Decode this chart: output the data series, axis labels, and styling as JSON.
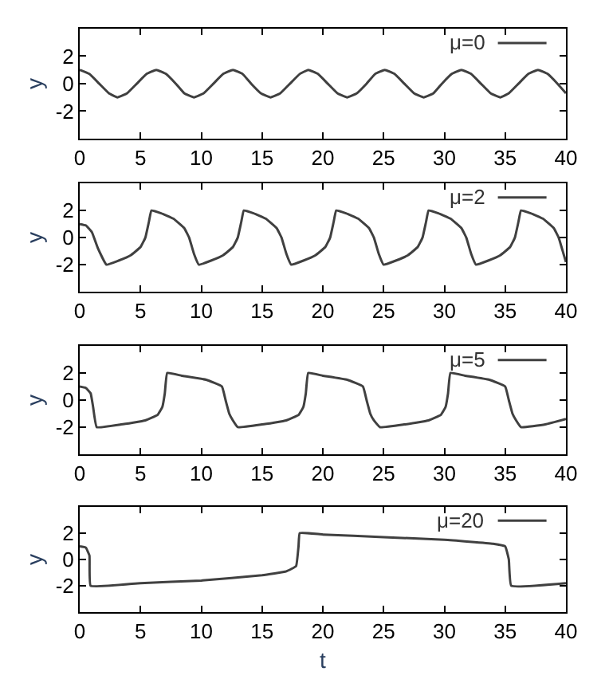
{
  "chart_data": [
    {
      "type": "line",
      "ylabel": "y",
      "xlim": [
        0,
        40
      ],
      "xticks": [
        0,
        5,
        10,
        15,
        20,
        25,
        30,
        35,
        40
      ],
      "ylim": [
        -4,
        4
      ],
      "yticks": [
        -2,
        0,
        2
      ],
      "grid": false,
      "legend": "top right",
      "series": [
        {
          "name": "μ=0",
          "color": "#404040",
          "x": [
            0,
            0.8,
            1.6,
            2.4,
            3.1,
            3.9,
            4.7,
            5.5,
            6.3,
            7.1,
            7.9,
            8.6,
            9.4,
            10.2,
            11.0,
            11.8,
            12.6,
            13.4,
            14.1,
            14.9,
            15.7,
            16.5,
            17.3,
            18.1,
            18.8,
            19.6,
            20.4,
            21.2,
            22.0,
            22.8,
            23.6,
            24.3,
            25.1,
            25.9,
            26.7,
            27.5,
            28.3,
            29.1,
            29.8,
            30.6,
            31.4,
            32.2,
            33.0,
            33.8,
            34.6,
            35.3,
            36.1,
            36.9,
            37.7,
            38.5,
            39.3,
            40.0
          ],
          "values": [
            1,
            0.7,
            0,
            -0.7,
            -1,
            -0.7,
            0,
            0.7,
            1,
            0.7,
            0,
            -0.7,
            -1,
            -0.7,
            0,
            0.7,
            1,
            0.7,
            0,
            -0.7,
            -1,
            -0.7,
            0,
            0.7,
            1,
            0.7,
            0,
            -0.7,
            -1,
            -0.7,
            0,
            0.7,
            1,
            0.7,
            0,
            -0.7,
            -1,
            -0.7,
            0,
            0.7,
            1,
            0.7,
            0,
            -0.7,
            -1,
            -0.7,
            0,
            0.7,
            1,
            0.7,
            0,
            -0.7
          ]
        }
      ]
    },
    {
      "type": "line",
      "ylabel": "y",
      "xlim": [
        0,
        40
      ],
      "xticks": [
        0,
        5,
        10,
        15,
        20,
        25,
        30,
        35,
        40
      ],
      "ylim": [
        -4,
        4
      ],
      "yticks": [
        -2,
        0,
        2
      ],
      "grid": false,
      "legend": "top right",
      "series": [
        {
          "name": "μ=2",
          "color": "#404040",
          "x": [
            0,
            0.5,
            1,
            1.5,
            2.2,
            3.2,
            4.2,
            5.0,
            5.4,
            5.7,
            5.9,
            6.7,
            7.7,
            8.6,
            9.0,
            9.4,
            9.8,
            10.8,
            11.8,
            12.6,
            13.0,
            13.3,
            13.5,
            14.3,
            15.3,
            16.2,
            16.6,
            17.0,
            17.4,
            18.4,
            19.4,
            20.2,
            20.6,
            20.9,
            21.1,
            21.9,
            22.9,
            23.8,
            24.2,
            24.6,
            25.0,
            26.0,
            27.0,
            27.8,
            28.2,
            28.5,
            28.7,
            29.5,
            30.5,
            31.4,
            31.8,
            32.2,
            32.6,
            33.6,
            34.6,
            35.4,
            35.8,
            36.1,
            36.3,
            37.1,
            38.1,
            39.0,
            39.4,
            39.8,
            40.0
          ],
          "values": [
            1,
            0.9,
            0.4,
            -0.8,
            -2,
            -1.7,
            -1.3,
            -0.7,
            0,
            1.2,
            2,
            1.8,
            1.4,
            0.7,
            0,
            -1.2,
            -2,
            -1.7,
            -1.3,
            -0.7,
            0,
            1.2,
            2,
            1.8,
            1.4,
            0.7,
            0,
            -1.2,
            -2,
            -1.7,
            -1.3,
            -0.7,
            0,
            1.2,
            2,
            1.8,
            1.4,
            0.7,
            0,
            -1.2,
            -2,
            -1.7,
            -1.3,
            -0.7,
            0,
            1.2,
            2,
            1.8,
            1.4,
            0.7,
            0,
            -1.2,
            -2,
            -1.7,
            -1.3,
            -0.7,
            0,
            1.2,
            2,
            1.8,
            1.4,
            0.7,
            0,
            -1.2,
            -1.8
          ]
        }
      ]
    },
    {
      "type": "line",
      "ylabel": "y",
      "xlim": [
        0,
        40
      ],
      "xticks": [
        0,
        5,
        10,
        15,
        20,
        25,
        30,
        35,
        40
      ],
      "ylim": [
        -4,
        4
      ],
      "yticks": [
        -2,
        0,
        2
      ],
      "grid": false,
      "legend": "top right",
      "series": [
        {
          "name": "μ=5",
          "color": "#404040",
          "x": [
            0,
            0.5,
            0.9,
            1.1,
            1.4,
            3.4,
            5.4,
            6.4,
            6.8,
            7.0,
            7.2,
            8.4,
            10.4,
            11.7,
            12.0,
            12.3,
            12.6,
            13.0,
            15.0,
            17.0,
            18.0,
            18.4,
            18.6,
            18.8,
            20.0,
            22.0,
            23.3,
            23.6,
            23.9,
            24.2,
            24.7,
            26.7,
            28.7,
            29.7,
            30.1,
            30.3,
            30.5,
            31.7,
            33.7,
            35.0,
            35.3,
            35.6,
            35.9,
            36.3,
            38.3,
            40.0
          ],
          "values": [
            1,
            0.9,
            0.5,
            -0.5,
            -2,
            -1.8,
            -1.5,
            -1.1,
            -0.5,
            0.5,
            2,
            1.8,
            1.5,
            1,
            0,
            -1,
            -1.5,
            -2,
            -1.8,
            -1.5,
            -1.1,
            -0.5,
            0.5,
            2,
            1.8,
            1.5,
            1,
            0,
            -1,
            -1.5,
            -2,
            -1.8,
            -1.5,
            -1.1,
            -0.5,
            0.5,
            2,
            1.8,
            1.5,
            1,
            0,
            -1,
            -1.5,
            -2,
            -1.8,
            -1.4
          ]
        }
      ]
    },
    {
      "type": "line",
      "xlabel": "t",
      "ylabel": "y",
      "xlim": [
        0,
        40
      ],
      "xticks": [
        0,
        5,
        10,
        15,
        20,
        25,
        30,
        35,
        40
      ],
      "ylim": [
        -4,
        4
      ],
      "yticks": [
        -2,
        0,
        2
      ],
      "grid": false,
      "legend": "top right",
      "series": [
        {
          "name": "μ=20",
          "color": "#404040",
          "x": [
            0,
            0.5,
            0.8,
            0.9,
            5,
            10,
            15,
            17,
            17.8,
            18.0,
            18.1,
            20,
            25,
            30,
            34,
            35,
            35.3,
            35.5,
            40
          ],
          "values": [
            1,
            0.9,
            0.3,
            -2,
            -1.8,
            -1.6,
            -1.2,
            -0.9,
            -0.5,
            1,
            2,
            1.9,
            1.7,
            1.5,
            1.2,
            1,
            0,
            -2,
            -1.8
          ]
        }
      ]
    }
  ]
}
